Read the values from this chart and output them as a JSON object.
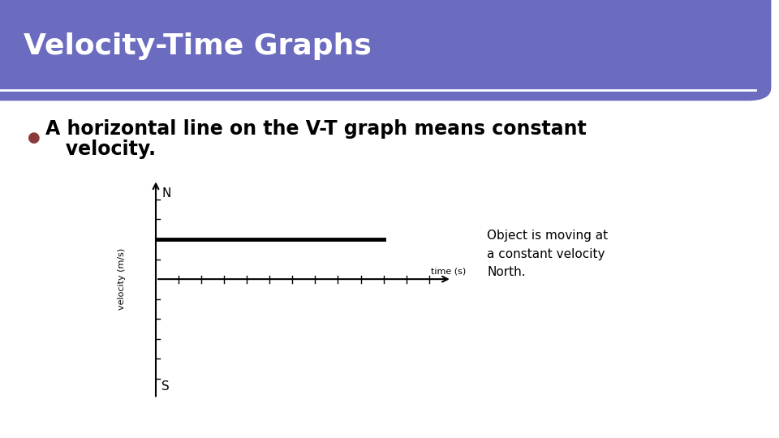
{
  "title": "Velocity-Time Graphs",
  "title_bg_color": "#6B6BBF",
  "title_text_color": "#FFFFFF",
  "slide_bg_color": "#FFFFFF",
  "slide_border_color": "#5B9EA0",
  "bullet_text_line1": "A horizontal line on the V-T graph means constant",
  "bullet_text_line2": "   velocity.",
  "bullet_dot_color": "#8B3A3A",
  "annotation_text": "Object is moving at\na constant velocity\nNorth.",
  "xlabel": "time (s)",
  "ylabel": "velocity (m/s)",
  "north_label": "N",
  "south_label": "S",
  "horizontal_line_y": 2,
  "y_range": [
    -6,
    5
  ],
  "x_range": [
    0,
    13
  ],
  "line_color": "#000000",
  "axis_color": "#000000",
  "tick_color": "#000000",
  "font_family": "DejaVu Sans"
}
